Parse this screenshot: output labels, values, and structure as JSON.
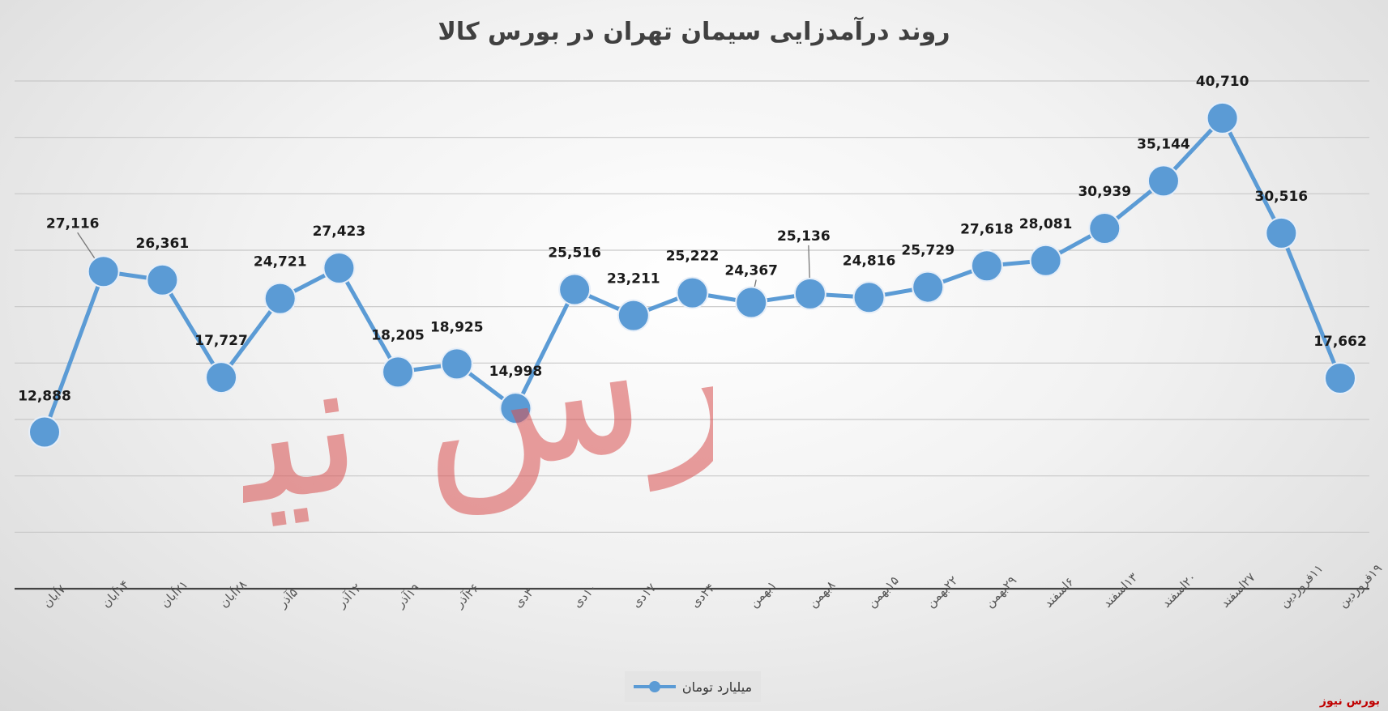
{
  "chart_data": {
    "type": "line",
    "title": "روند درآمدزایی سیمان تهران در بورس کالا",
    "categories": [
      "۷آبان",
      "۱۴آبان",
      "۲۱آبان",
      "۲۸آبان",
      "۵آذر",
      "۱۲آذر",
      "۱۹آذر",
      "۲۶آذر",
      "۳دی",
      "۱۰دی",
      "۱۷دی",
      "۲۴دی",
      "۱بهمن",
      "۸بهمن",
      "۱۵بهمن",
      "۲۲بهمن",
      "۲۹بهمن",
      "۶اسفند",
      "۱۳اسفند",
      "۲۰اسفند",
      "۲۷اسفند",
      "۱۱فروردین",
      "۱۹فروردین"
    ],
    "series": [
      {
        "name": "میلیارد تومان",
        "values": [
          12888,
          27116,
          26361,
          17727,
          24721,
          27423,
          18205,
          18925,
          14998,
          25516,
          23211,
          25222,
          24367,
          25136,
          24816,
          25729,
          27618,
          28081,
          30939,
          35144,
          40710,
          30516,
          17662
        ],
        "labels": [
          "12,888",
          "27,116",
          "26,361",
          "17,727",
          "24,721",
          "27,423",
          "18,205",
          "18,925",
          "14,998",
          "25,516",
          "23,211",
          "25,222",
          "24,367",
          "25,136",
          "24,816",
          "25,729",
          "27,618",
          "28,081",
          "30,939",
          "35,144",
          "40,710",
          "30,516",
          "17,662"
        ]
      }
    ],
    "ylim": [
      -1000,
      44000
    ],
    "grid": true,
    "legend": "bottom",
    "color": "#5b9bd5"
  },
  "watermark": "بورس نیوز",
  "source": "بورس نیوز"
}
